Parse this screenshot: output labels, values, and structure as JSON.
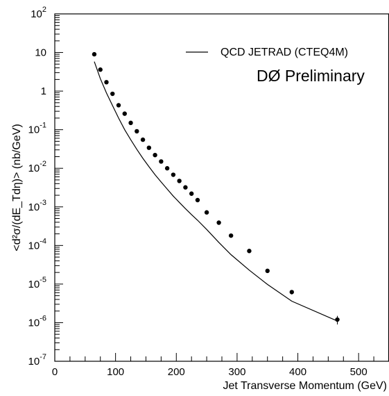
{
  "chart_data": {
    "type": "scatter",
    "title": "",
    "xlabel": "Jet Transverse Momentum (GeV)",
    "ylabel": "<d²σ/(dE_Tdη)> (nb/GeV)",
    "xlim": [
      0,
      550
    ],
    "ylim": [
      1e-07,
      100
    ],
    "y_scale": "log",
    "grid": false,
    "legend_position": "top-right",
    "x_ticks": [
      0,
      100,
      200,
      300,
      400,
      500
    ],
    "x_tick_labels": [
      "0",
      "100",
      "200",
      "300",
      "400",
      "500"
    ],
    "y_ticks": [
      1e-07,
      1e-06,
      1e-05,
      0.0001,
      0.001,
      0.01,
      0.1,
      1,
      10,
      100
    ],
    "y_tick_labels": [
      {
        "base": "10",
        "exp": "-7"
      },
      {
        "base": "10",
        "exp": "-6"
      },
      {
        "base": "10",
        "exp": "-5"
      },
      {
        "base": "10",
        "exp": "-4"
      },
      {
        "base": "10",
        "exp": "-3"
      },
      {
        "base": "10",
        "exp": "-2"
      },
      {
        "base": "10",
        "exp": "-1"
      },
      {
        "base": "1",
        "exp": ""
      },
      {
        "base": "10",
        "exp": ""
      },
      {
        "base": "10",
        "exp": "2"
      }
    ],
    "series": [
      {
        "name": "DØ Preliminary",
        "kind": "points",
        "color": "#000000",
        "x": [
          65,
          75,
          85,
          95,
          105,
          115,
          125,
          135,
          145,
          155,
          165,
          175,
          185,
          195,
          205,
          215,
          225,
          235,
          250,
          270,
          290,
          320,
          350,
          390,
          465
        ],
        "y": [
          9.0,
          3.6,
          1.7,
          0.85,
          0.43,
          0.26,
          0.15,
          0.091,
          0.055,
          0.034,
          0.022,
          0.015,
          0.01,
          0.0068,
          0.0047,
          0.0032,
          0.0022,
          0.0015,
          0.00072,
          0.00039,
          0.00018,
          7.2e-05,
          2.2e-05,
          6.2e-06,
          1.2e-06
        ],
        "y_err": [
          0.4,
          0.15,
          0.08,
          0.04,
          0.02,
          0.012,
          0.007,
          0.004,
          0.0025,
          0.0015,
          0.001,
          0.0007,
          0.0005,
          0.0003,
          0.0002,
          0.00015,
          0.0001,
          7e-05,
          4e-05,
          2e-05,
          1e-05,
          5e-06,
          2e-06,
          8e-07,
          3e-07
        ]
      },
      {
        "name": "QCD JETRAD (CTEQ4M)",
        "kind": "line",
        "color": "#000000",
        "x": [
          65,
          75,
          85,
          95,
          105,
          115,
          125,
          135,
          145,
          155,
          165,
          175,
          185,
          195,
          205,
          215,
          225,
          235,
          250,
          270,
          290,
          320,
          350,
          390,
          465
        ],
        "y": [
          5.8,
          2.1,
          0.9,
          0.42,
          0.2,
          0.1,
          0.055,
          0.031,
          0.018,
          0.011,
          0.0068,
          0.0044,
          0.0029,
          0.0019,
          0.0013,
          0.0009,
          0.00063,
          0.00045,
          0.00026,
          0.00012,
          5.8e-05,
          2.3e-05,
          9.8e-06,
          3.6e-06,
          1.1e-06
        ]
      }
    ],
    "legend": [
      {
        "label": "QCD JETRAD (CTEQ4M)",
        "symbol": "line"
      }
    ],
    "annotations": [
      {
        "text": "DØ Preliminary"
      }
    ]
  }
}
